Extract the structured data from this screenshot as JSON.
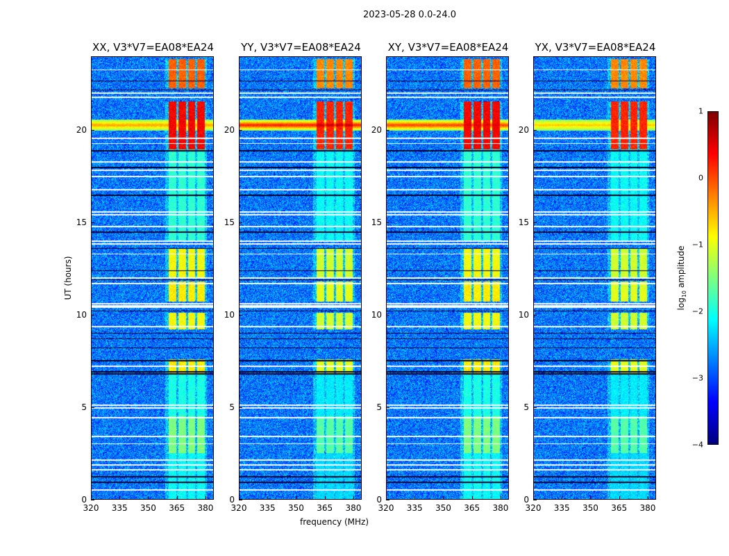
{
  "chart_data": {
    "type": "heatmap",
    "title": "2023-05-28 0.0-24.0",
    "xlabel": "frequency (MHz)",
    "ylabel": "UT (hours)",
    "xlim": [
      320,
      384.4
    ],
    "ylim": [
      0,
      24
    ],
    "xticks": [
      320,
      335,
      350,
      365,
      380
    ],
    "yticks": [
      0,
      5,
      10,
      15,
      20
    ],
    "panels": [
      {
        "title": "XX, V3*V7=EA08*EA24",
        "band_strength": -0.4
      },
      {
        "title": "YY, V3*V7=EA08*EA24",
        "band_strength": 0.3
      },
      {
        "title": "XY, V3*V7=EA08*EA24",
        "band_strength": 0.1
      },
      {
        "title": "YX, V3*V7=EA08*EA24",
        "band_strength": -0.6
      }
    ],
    "colorbar": {
      "label_prefix": "log",
      "label_sub": "10",
      "label_suffix": " amplitude",
      "range": [
        -4,
        1
      ],
      "ticks": [
        "1",
        "0",
        "−1",
        "−2",
        "−3",
        "−4"
      ],
      "colormap": "jet"
    },
    "background_level": -2.8,
    "rfi_channels_mhz": [
      [
        361,
        365
      ],
      [
        366,
        370
      ],
      [
        371,
        375
      ],
      [
        376,
        380
      ]
    ],
    "rfi_time_blocks": [
      {
        "from": 22.3,
        "to": 23.9,
        "level": -0.1
      },
      {
        "from": 19.0,
        "to": 21.6,
        "level": 0.4
      },
      {
        "from": 14.0,
        "to": 19.0,
        "level": -1.9
      },
      {
        "from": 12.0,
        "to": 13.6,
        "level": -0.9
      },
      {
        "from": 10.7,
        "to": 11.8,
        "level": -0.8
      },
      {
        "from": 9.2,
        "to": 10.1,
        "level": -0.9
      },
      {
        "from": 6.8,
        "to": 7.6,
        "level": -0.8
      },
      {
        "from": 2.5,
        "to": 4.5,
        "level": -1.5
      },
      {
        "from": 0.0,
        "to": 2.5,
        "level": -2.1
      },
      {
        "from": 4.5,
        "to": 6.8,
        "level": -2.0
      }
    ],
    "broadband_event_ut": [
      20.0,
      20.6
    ],
    "flagged_rows_ut": [
      23.3,
      22.05,
      21.8,
      19.6,
      19.3,
      18.3,
      17.85,
      17.5,
      16.8,
      15.6,
      15.45,
      14.8,
      14.0,
      13.85,
      13.3,
      12.0,
      11.7,
      10.4,
      10.5,
      10.6,
      9.35,
      7.2,
      5.1,
      4.95,
      4.4,
      3.4,
      3.0,
      2.1,
      1.85,
      1.6,
      0.5
    ],
    "dark_rows_ut": [
      22.7,
      22.2,
      18.9,
      18.0,
      16.5,
      14.5,
      13.6,
      12.4,
      11.9,
      10.2,
      9.0,
      8.7,
      8.2,
      7.5,
      6.9,
      6.8,
      1.2,
      0.9
    ]
  }
}
